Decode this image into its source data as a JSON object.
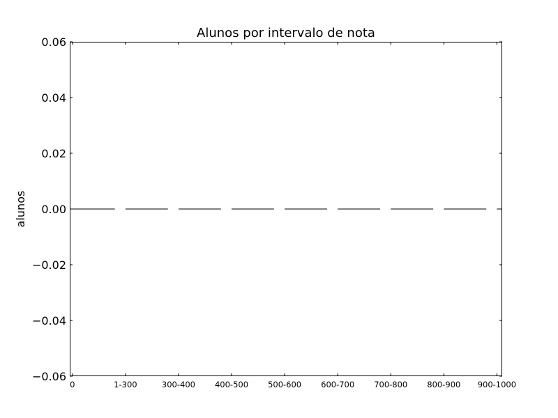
{
  "chart_data": {
    "type": "bar",
    "title": "Alunos por intervalo de nota",
    "xlabel": "",
    "ylabel": "alunos",
    "categories": [
      "0",
      "1-300",
      "300-400",
      "400-500",
      "500-600",
      "600-700",
      "700-800",
      "800-900",
      "900-1000"
    ],
    "values": [
      0,
      0,
      0,
      0,
      0,
      0,
      0,
      0,
      0
    ],
    "ylim": [
      -0.06,
      0.06
    ],
    "yticks": [
      0.06,
      0.04,
      0.02,
      0.0,
      -0.02,
      -0.04,
      -0.06
    ],
    "ytick_labels": [
      "0.06",
      "0.04",
      "0.02",
      "0.00",
      "−0.02",
      "−0.04",
      "−0.06"
    ],
    "grid": false,
    "legend": "none",
    "bar_color": "#000000"
  }
}
